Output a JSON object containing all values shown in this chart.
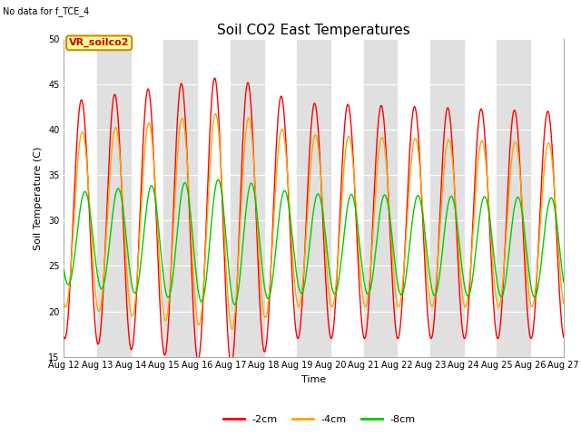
{
  "title": "Soil CO2 East Temperatures",
  "top_left_text": "No data for f_TCE_4",
  "vr_label": "VR_soilco2",
  "ylabel": "Soil Temperature (C)",
  "xlabel": "Time",
  "ylim": [
    15,
    50
  ],
  "xlim": [
    0,
    15
  ],
  "xtick_labels": [
    "Aug 12",
    "Aug 13",
    "Aug 14",
    "Aug 15",
    "Aug 16",
    "Aug 17",
    "Aug 18",
    "Aug 19",
    "Aug 20",
    "Aug 21",
    "Aug 22",
    "Aug 23",
    "Aug 24",
    "Aug 25",
    "Aug 26",
    "Aug 27"
  ],
  "legend_entries": [
    "-2cm",
    "-4cm",
    "-8cm"
  ],
  "line_colors": [
    "#ff0000",
    "#ffa500",
    "#00cc00"
  ],
  "bg_color": "#ffffff",
  "band_color": "#e0e0e0",
  "title_fontsize": 11,
  "label_fontsize": 8,
  "tick_fontsize": 7
}
